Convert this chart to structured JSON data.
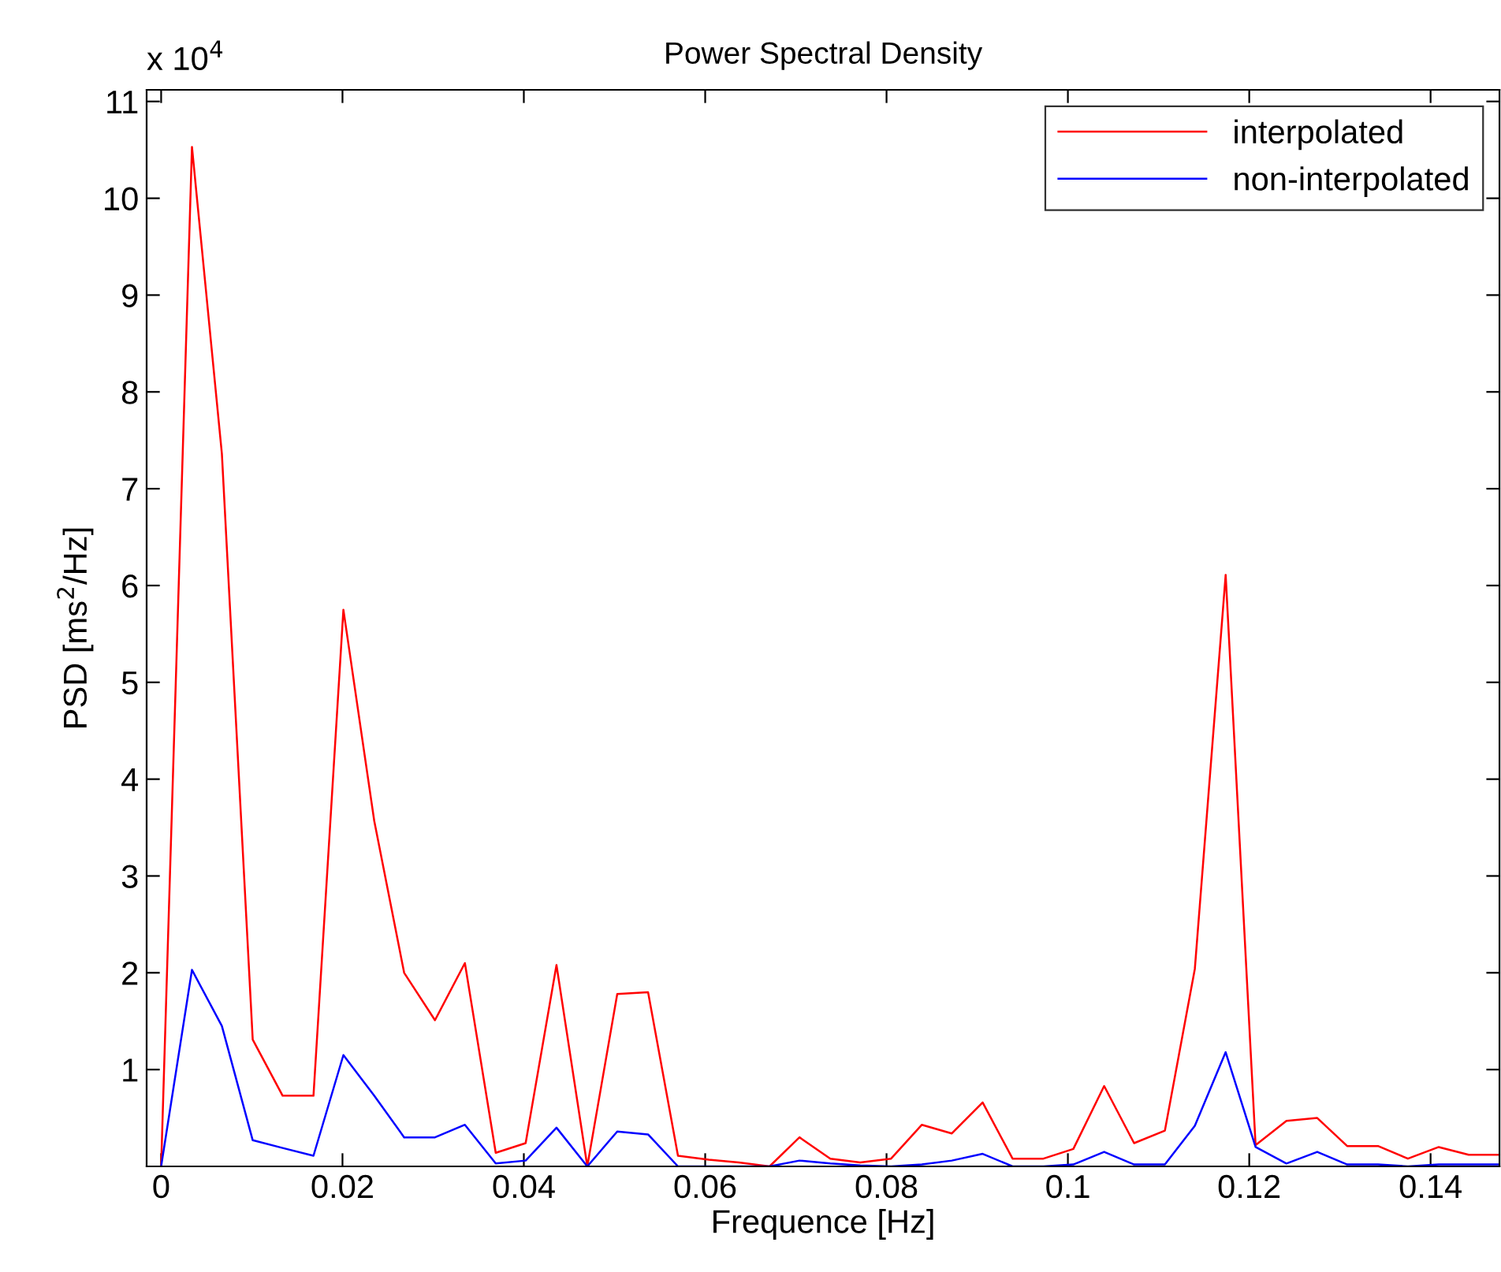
{
  "chart_data": {
    "type": "line",
    "title": "Power Spectral Density",
    "xlabel": "Frequence [Hz]",
    "ylabel": "PSD [ms$^{2}$/Hz]",
    "annotations": [
      "x 10$^{4}$"
    ],
    "x": [
      0,
      0.0034,
      0.0067,
      0.0101,
      0.0134,
      0.0168,
      0.0201,
      0.0235,
      0.0268,
      0.0302,
      0.0335,
      0.0369,
      0.0402,
      0.0436,
      0.047,
      0.0503,
      0.0537,
      0.057,
      0.0604,
      0.0637,
      0.0671,
      0.0704,
      0.0738,
      0.0771,
      0.0805,
      0.0839,
      0.0872,
      0.0906,
      0.0939,
      0.0973,
      0.1006,
      0.104,
      0.1073,
      0.1107,
      0.114,
      0.1174,
      0.1207,
      0.1241,
      0.1275,
      0.1308,
      0.1342,
      0.1375,
      0.1409,
      0.1442,
      0.1476
    ],
    "series": [
      {
        "name": "interpolated",
        "color": "#ff0000",
        "values": [
          0,
          10.53,
          7.36,
          1.31,
          0.73,
          0.73,
          5.75,
          3.57,
          2.0,
          1.51,
          2.1,
          0.14,
          0.24,
          2.08,
          0,
          1.78,
          1.8,
          0.11,
          0.07,
          0.04,
          0,
          0.3,
          0.08,
          0.04,
          0.08,
          0.43,
          0.34,
          0.66,
          0.08,
          0.08,
          0.18,
          0.83,
          0.24,
          0.37,
          2.04,
          6.11,
          0.22,
          0.47,
          0.5,
          0.21,
          0.21,
          0.08,
          0.2,
          0.12,
          0.12
        ]
      },
      {
        "name": "non-interpolated",
        "color": "#0000ff",
        "values": [
          0,
          2.03,
          1.45,
          0.27,
          0.19,
          0.11,
          1.15,
          0.73,
          0.3,
          0.3,
          0.43,
          0.03,
          0.06,
          0.4,
          0,
          0.36,
          0.33,
          0,
          0,
          0,
          0,
          0.06,
          0.03,
          0.01,
          0,
          0.02,
          0.06,
          0.13,
          0,
          0,
          0.02,
          0.15,
          0.02,
          0.02,
          0.42,
          1.18,
          0.2,
          0.03,
          0.15,
          0.02,
          0.02,
          0,
          0.02,
          0.02,
          0.02
        ]
      }
    ],
    "xlim": [
      -0.0016,
      0.1476
    ],
    "ylim": [
      0,
      11.12
    ],
    "xticks": [
      0,
      0.02,
      0.04,
      0.06,
      0.08,
      0.1,
      0.12,
      0.14
    ],
    "yticks": [
      1,
      2,
      3,
      4,
      5,
      6,
      7,
      8,
      9,
      10,
      11
    ],
    "grid": false,
    "legend": "top right",
    "line_style": "solid",
    "marker": "none"
  }
}
